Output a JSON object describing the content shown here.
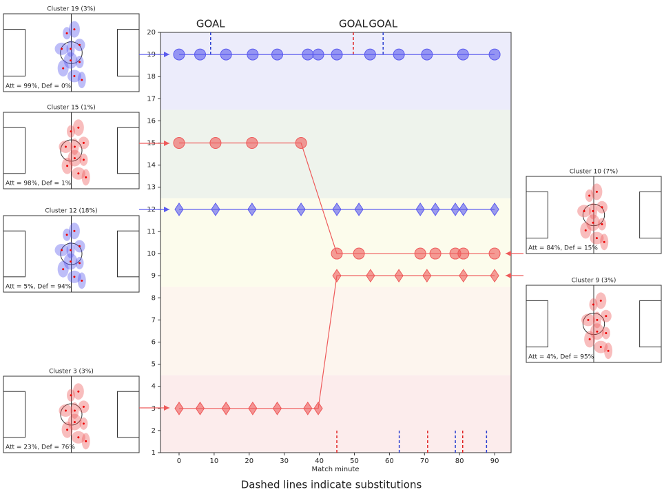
{
  "chart_data": {
    "type": "scatter",
    "xlabel": "Match minute",
    "caption": "Dashed lines indicate substitutions",
    "xlim": [
      -5.3,
      94.7
    ],
    "ylim": [
      1,
      20
    ],
    "xticks": [
      0,
      10,
      20,
      30,
      40,
      50,
      60,
      70,
      80,
      90
    ],
    "yticks": [
      1,
      2,
      3,
      4,
      5,
      6,
      7,
      8,
      9,
      10,
      11,
      12,
      13,
      14,
      15,
      16,
      17,
      18,
      19,
      20
    ],
    "bands": [
      {
        "from": 16.5,
        "to": 20,
        "color": "#ececfb"
      },
      {
        "from": 12.5,
        "to": 16.5,
        "color": "#eef3ec"
      },
      {
        "from": 8.5,
        "to": 12.5,
        "color": "#fcfcec"
      },
      {
        "from": 4.5,
        "to": 8.5,
        "color": "#fdf5ee"
      },
      {
        "from": 1,
        "to": 4.5,
        "color": "#fcecec"
      }
    ],
    "series": [
      {
        "marker": "circle",
        "color": "#5a5aee",
        "x": [
          0,
          6,
          13.4,
          21,
          28,
          36.7,
          39.7,
          45,
          54.5,
          62.7,
          70.7,
          81,
          90
        ],
        "values": [
          19,
          19,
          19,
          19,
          19,
          19,
          19,
          19,
          19,
          19,
          19,
          19,
          19
        ]
      },
      {
        "marker": "diamond",
        "color": "#5a5aee",
        "x": [
          0,
          10.4,
          20.8,
          34.8,
          45,
          51.3,
          68.8,
          73.1,
          78.8,
          81.1,
          90
        ],
        "values": [
          12,
          12,
          12,
          12,
          12,
          12,
          12,
          12,
          12,
          12,
          12
        ]
      },
      {
        "marker": "circle",
        "color": "#ee5a5a",
        "x": [
          0,
          10.4,
          20.8,
          34.8,
          45,
          51.3,
          68.8,
          73.1,
          78.8,
          81.1,
          90
        ],
        "values": [
          15,
          15,
          15,
          15,
          10,
          10,
          10,
          10,
          10,
          10,
          10
        ]
      },
      {
        "marker": "diamond",
        "color": "#ee5a5a",
        "x": [
          0,
          6,
          13.4,
          21,
          28,
          36.7,
          39.7,
          45,
          54.6,
          62.7,
          70.7,
          81.1,
          90
        ],
        "values": [
          3,
          3,
          3,
          3,
          3,
          3,
          3,
          9,
          9,
          9,
          9,
          9,
          9
        ]
      }
    ],
    "goals": [
      {
        "label": "GOAL",
        "x": 9,
        "color": "#2a3fd0"
      },
      {
        "label": "GOAL",
        "x": 49.7,
        "color": "#e02020"
      },
      {
        "label": "GOAL",
        "x": 58.2,
        "color": "#2a3fd0"
      }
    ],
    "substitutions": [
      {
        "x": 45,
        "color": "#e02020"
      },
      {
        "x": 62.8,
        "color": "#2a3fd0"
      },
      {
        "x": 70.9,
        "color": "#e02020"
      },
      {
        "x": 78.8,
        "color": "#2a3fd0"
      },
      {
        "x": 80.9,
        "color": "#e02020"
      },
      {
        "x": 87.7,
        "color": "#2a3fd0"
      }
    ],
    "panels": [
      {
        "title": "Cluster 19 (3%)",
        "stats": "Att = 99%, Def = 0%",
        "color": "#5a5aee"
      },
      {
        "title": "Cluster 15 (1%)",
        "stats": "Att = 98%, Def = 1%",
        "color": "#ee5a5a"
      },
      {
        "title": "Cluster 12 (18%)",
        "stats": "Att = 5%, Def = 94%",
        "color": "#5a5aee"
      },
      {
        "title": "Cluster 3 (3%)",
        "stats": "Att = 23%, Def = 76%",
        "color": "#ee5a5a"
      },
      {
        "title": "Cluster 10 (7%)",
        "stats": "Att = 84%, Def = 15%",
        "color": "#ee5a5a"
      },
      {
        "title": "Cluster 9 (3%)",
        "stats": "Att = 4%, Def = 95%",
        "color": "#ee5a5a"
      }
    ]
  }
}
